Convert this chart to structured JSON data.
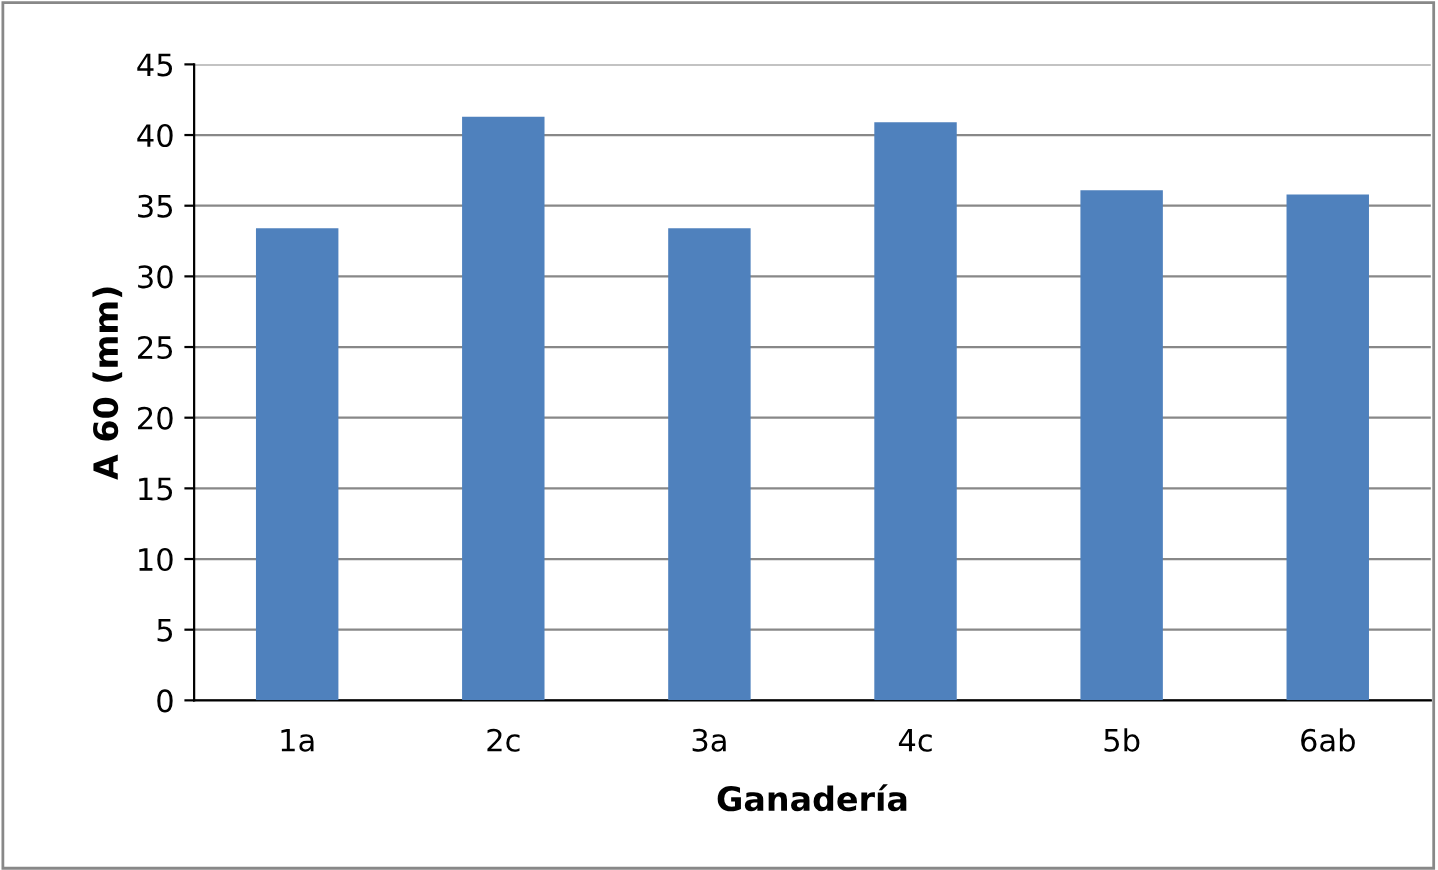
{
  "chart_data": {
    "type": "bar",
    "xlabel": "Ganadería",
    "ylabel": "A 60 (mm)",
    "categories": [
      "1a",
      "2c",
      "3a",
      "4c",
      "5b",
      "6ab"
    ],
    "values": [
      33.4,
      41.3,
      33.4,
      40.9,
      36.1,
      35.8
    ],
    "color": "#4f81bd",
    "ylim": [
      0,
      45
    ],
    "yticks": [
      0,
      5,
      10,
      15,
      20,
      25,
      30,
      35,
      40,
      45
    ],
    "grid": "y",
    "legend": false
  }
}
